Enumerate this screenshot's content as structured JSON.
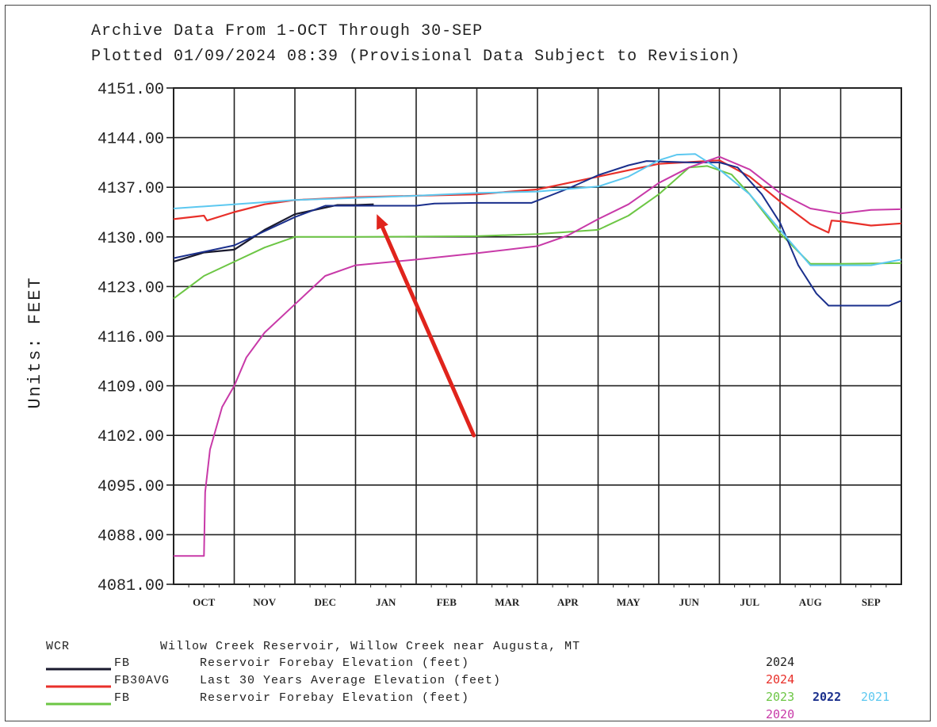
{
  "header": {
    "line1": "Archive Data From  1-OCT Through 30-SEP",
    "line2": "Plotted 01/09/2024  08:39 (Provisional Data Subject to Revision)"
  },
  "colors": {
    "s2024": "#1a1a2e",
    "avg": "#e8302a",
    "s2023": "#6cc644",
    "s2022": "#1a2f8c",
    "s2021": "#5cc8f0",
    "s2020": "#c83aa8",
    "arrow": "#e0241c"
  },
  "legend": {
    "station_code": "WCR",
    "station_name": "Willow Creek Reservoir, Willow Creek near Augusta, MT",
    "rows": [
      {
        "code": "FB",
        "desc": "Reservoir Forebay Elevation (feet)"
      },
      {
        "code": "FB30AVG",
        "desc": "Last 30 Years Average Elevation (feet)"
      },
      {
        "code": "FB",
        "desc": "Reservoir Forebay Elevation (feet)"
      }
    ],
    "years": {
      "y2024a": "2024",
      "y2024b": "2024",
      "y2023": "2023",
      "y2022": "2022",
      "y2021": "2021",
      "y2020": "2020"
    }
  },
  "chart_data": {
    "type": "line",
    "ylabel": "Units: FEET",
    "xlabel": "",
    "ylim": [
      4081,
      4151
    ],
    "yticks": [
      "4151.00",
      "4144.00",
      "4137.00",
      "4130.00",
      "4123.00",
      "4116.00",
      "4109.00",
      "4102.00",
      "4095.00",
      "4088.00",
      "4081.00"
    ],
    "categories": [
      "OCT",
      "NOV",
      "DEC",
      "JAN",
      "FEB",
      "MAR",
      "APR",
      "MAY",
      "JUN",
      "JUL",
      "AUG",
      "SEP"
    ],
    "grid": true,
    "x_unit": "month index (0 = 1-Oct, 12 = 30-Sep)",
    "series": [
      {
        "name": "FB 2024",
        "color_key": "s2024",
        "width": 2.2,
        "points": [
          [
            0,
            4126.5
          ],
          [
            0.5,
            4127.8
          ],
          [
            1,
            4128.2
          ],
          [
            1.5,
            4131
          ],
          [
            2,
            4133.2
          ],
          [
            2.7,
            4134.5
          ],
          [
            3,
            4134.5
          ],
          [
            3.3,
            4134.6
          ]
        ]
      },
      {
        "name": "FB30AVG 2024",
        "color_key": "avg",
        "width": 2.2,
        "points": [
          [
            0,
            4132.5
          ],
          [
            0.5,
            4133
          ],
          [
            0.55,
            4132.3
          ],
          [
            1,
            4133.5
          ],
          [
            1.5,
            4134.6
          ],
          [
            2,
            4135.2
          ],
          [
            3,
            4135.6
          ],
          [
            4,
            4135.8
          ],
          [
            5,
            4136
          ],
          [
            6,
            4136.7
          ],
          [
            7,
            4138.5
          ],
          [
            8,
            4140.3
          ],
          [
            9,
            4140.8
          ],
          [
            9.5,
            4138.5
          ],
          [
            10,
            4135
          ],
          [
            10.5,
            4131.8
          ],
          [
            10.8,
            4130.6
          ],
          [
            10.85,
            4132.3
          ],
          [
            11,
            4132.2
          ],
          [
            11.5,
            4131.6
          ],
          [
            12,
            4131.9
          ]
        ]
      },
      {
        "name": "FB 2023",
        "color_key": "s2023",
        "width": 2,
        "points": [
          [
            0,
            4121.3
          ],
          [
            0.5,
            4124.5
          ],
          [
            1,
            4126.5
          ],
          [
            1.5,
            4128.5
          ],
          [
            2,
            4130
          ],
          [
            2.7,
            4130
          ],
          [
            3,
            4130
          ],
          [
            5,
            4130.1
          ],
          [
            6,
            4130.4
          ],
          [
            7,
            4131
          ],
          [
            7.5,
            4133
          ],
          [
            8,
            4136
          ],
          [
            8.5,
            4139.8
          ],
          [
            8.8,
            4140
          ],
          [
            9.2,
            4138.8
          ],
          [
            9.5,
            4136
          ],
          [
            10,
            4130.5
          ],
          [
            10.5,
            4126.2
          ],
          [
            11,
            4126.2
          ],
          [
            12,
            4126.3
          ]
        ]
      },
      {
        "name": "FB 2022",
        "color_key": "s2022",
        "width": 2,
        "points": [
          [
            0,
            4127
          ],
          [
            1,
            4128.8
          ],
          [
            1.5,
            4130.8
          ],
          [
            2,
            4132.8
          ],
          [
            2.5,
            4134.4
          ],
          [
            3,
            4134.4
          ],
          [
            4,
            4134.4
          ],
          [
            4.3,
            4134.7
          ],
          [
            5,
            4134.8
          ],
          [
            5.9,
            4134.8
          ],
          [
            6.5,
            4136.8
          ],
          [
            7,
            4138.7
          ],
          [
            7.5,
            4140.1
          ],
          [
            7.8,
            4140.7
          ],
          [
            8.5,
            4140.5
          ],
          [
            9,
            4140.5
          ],
          [
            9.3,
            4139.8
          ],
          [
            9.7,
            4136
          ],
          [
            10,
            4132
          ],
          [
            10.3,
            4126
          ],
          [
            10.6,
            4122
          ],
          [
            10.8,
            4120.3
          ],
          [
            11.5,
            4120.3
          ],
          [
            11.8,
            4120.3
          ],
          [
            12,
            4121
          ]
        ]
      },
      {
        "name": "FB 2021",
        "color_key": "s2021",
        "width": 2,
        "points": [
          [
            0,
            4134
          ],
          [
            1,
            4134.6
          ],
          [
            2,
            4135.2
          ],
          [
            3,
            4135.5
          ],
          [
            4,
            4135.8
          ],
          [
            5,
            4136.2
          ],
          [
            6,
            4136.4
          ],
          [
            7,
            4137.1
          ],
          [
            7.5,
            4138.5
          ],
          [
            8,
            4140.8
          ],
          [
            8.3,
            4141.6
          ],
          [
            8.6,
            4141.7
          ],
          [
            9,
            4139.5
          ],
          [
            9.5,
            4136
          ],
          [
            10,
            4131
          ],
          [
            10.5,
            4126
          ],
          [
            11,
            4126
          ],
          [
            11.5,
            4126
          ],
          [
            12,
            4126.8
          ]
        ]
      },
      {
        "name": "FB 2020",
        "color_key": "s2020",
        "width": 2,
        "points": [
          [
            0,
            4085
          ],
          [
            0.5,
            4085
          ],
          [
            0.52,
            4094
          ],
          [
            0.6,
            4100
          ],
          [
            0.8,
            4106
          ],
          [
            1,
            4109
          ],
          [
            1.2,
            4113
          ],
          [
            1.5,
            4116.5
          ],
          [
            2,
            4120.5
          ],
          [
            2.5,
            4124.5
          ],
          [
            3,
            4126
          ],
          [
            4,
            4126.8
          ],
          [
            5,
            4127.7
          ],
          [
            6,
            4128.7
          ],
          [
            6.5,
            4130.2
          ],
          [
            7,
            4132.5
          ],
          [
            7.5,
            4134.6
          ],
          [
            8,
            4137.6
          ],
          [
            8.5,
            4139.8
          ],
          [
            9,
            4141.3
          ],
          [
            9.5,
            4139.5
          ],
          [
            10,
            4136.2
          ],
          [
            10.5,
            4134
          ],
          [
            11,
            4133.3
          ],
          [
            11.5,
            4133.8
          ],
          [
            12,
            4133.9
          ]
        ]
      }
    ],
    "annotations": [
      {
        "type": "arrow",
        "from": [
          4.95,
          4102
        ],
        "to": [
          3.35,
          4133.2
        ]
      }
    ]
  }
}
